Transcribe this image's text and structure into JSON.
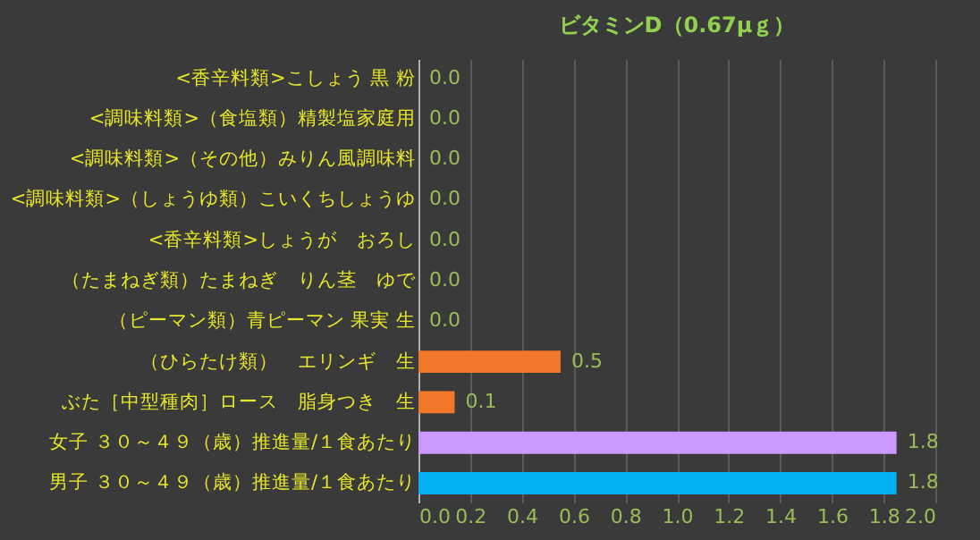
{
  "chart_data": {
    "type": "bar",
    "orientation": "horizontal",
    "title": "ビタミンD（0.67μｇ）",
    "categories": [
      "<香辛料類>こしょう 黒 粉",
      "<調味料類>（食塩類）精製塩家庭用",
      "<調味料類>（その他）みりん風調味料",
      "<調味料類>（しょうゆ類）こいくちしょうゆ",
      "<香辛料類>しょうが　おろし",
      "（たまねぎ類）たまねぎ　りん茎　ゆで",
      "（ピーマン類）青ピーマン 果実 生",
      "（ひらたけ類）　エリンギ　生",
      "ぶた［中型種肉］ロース　脂身つき　生",
      "女子 ３０～４９（歳）推進量/１食あたり",
      "男子 ３０～４９（歳）推進量/１食あたり"
    ],
    "values": [
      0,
      0,
      0,
      0,
      0,
      0,
      0,
      0.55,
      0.14,
      1.85,
      1.85
    ],
    "value_labels": [
      "0.0",
      "0.0",
      "0.0",
      "0.0",
      "0.0",
      "0.0",
      "0.0",
      "0.5",
      "0.1",
      "1.8",
      "1.8"
    ],
    "colors": [
      "#f07828",
      "#f07828",
      "#f07828",
      "#f07828",
      "#f07828",
      "#f07828",
      "#f07828",
      "#f07828",
      "#f07828",
      "#cc99ff",
      "#00b0f0"
    ],
    "xlim": [
      0,
      2
    ],
    "xticks": [
      {
        "value": 0,
        "label": "0.0"
      },
      0.2,
      0.4,
      0.6,
      0.8,
      {
        "value": 1,
        "label": "1.0"
      },
      1.2,
      1.4,
      1.6,
      1.8,
      {
        "value": 2,
        "label": "2.0"
      }
    ],
    "grid": "x"
  }
}
